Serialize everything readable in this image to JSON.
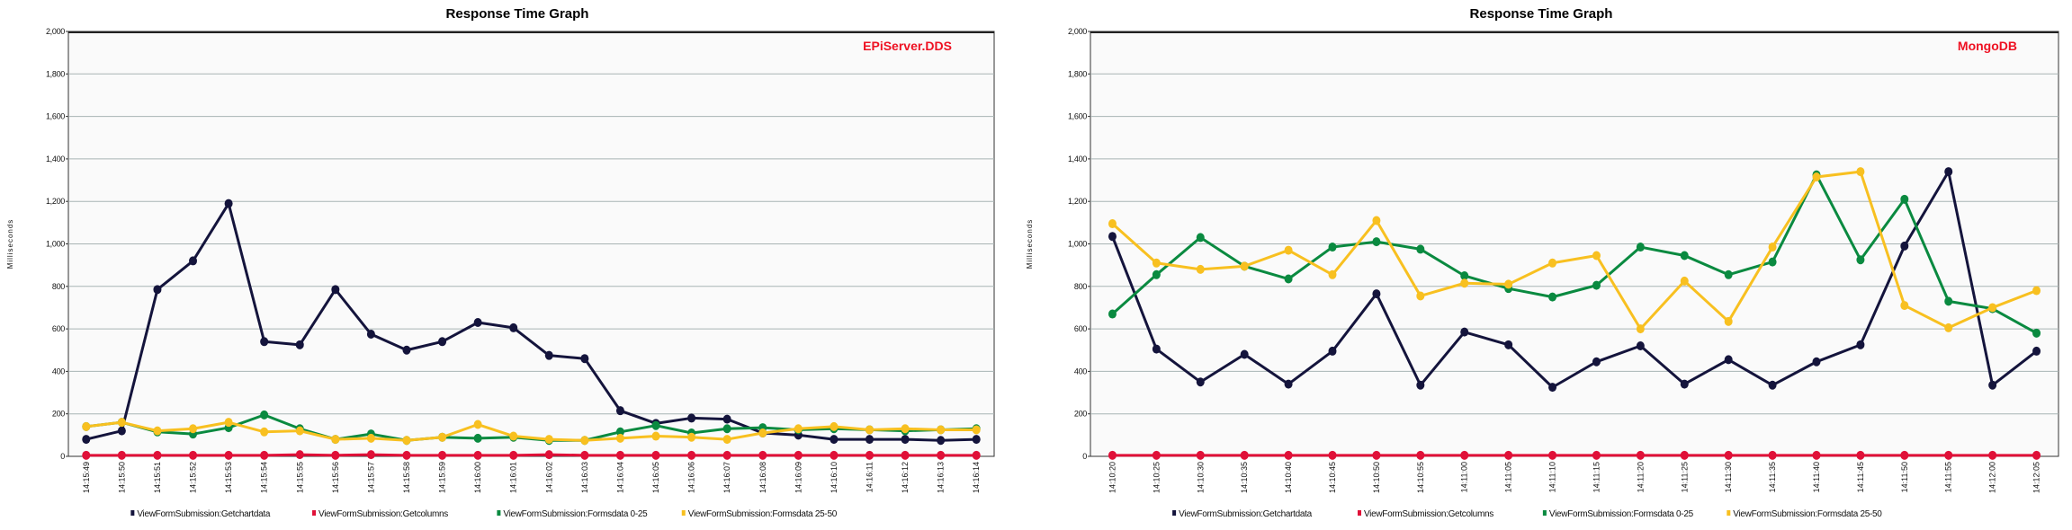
{
  "colors": {
    "Getchartdata": "#14143c",
    "Getcolumns": "#e01038",
    "Formsdata 0-25": "#0a8a40",
    "Formsdata 25-50": "#f8c020",
    "annotation": "#ee1122",
    "grid": "#a8b4b4"
  },
  "chart_data": [
    {
      "type": "line",
      "title": "Response Time Graph",
      "annotation": "EPiServer.DDS",
      "ylabel": "Milliseconds",
      "ylim": [
        0,
        2000
      ],
      "yticks": [
        "0",
        "200",
        "400",
        "600",
        "800",
        "1,000",
        "1,200",
        "1,400",
        "1,600",
        "1,800",
        "2,000"
      ],
      "grid": true,
      "legend": "bottom",
      "categories": [
        "14:15:49",
        "14:15:50",
        "14:15:51",
        "14:15:52",
        "14:15:53",
        "14:15:54",
        "14:15:55",
        "14:15:56",
        "14:15:57",
        "14:15:58",
        "14:15:59",
        "14:16:00",
        "14:16:01",
        "14:16:02",
        "14:16:03",
        "14:16:04",
        "14:16:05",
        "14:16:06",
        "14:16:07",
        "14:16:08",
        "14:16:09",
        "14:16:10",
        "14:16:11",
        "14:16:12",
        "14:16:13",
        "14:16:14"
      ],
      "series": [
        {
          "name": "ViewFormSubmission:Getchartdata",
          "key": "Getchartdata",
          "values": [
            80,
            120,
            785,
            920,
            1190,
            540,
            525,
            785,
            575,
            500,
            540,
            630,
            605,
            475,
            460,
            215,
            155,
            180,
            175,
            110,
            100,
            80,
            80,
            80,
            75,
            80
          ]
        },
        {
          "name": "ViewFormSubmission:Getcolumns",
          "key": "Getcolumns",
          "values": [
            5,
            5,
            5,
            5,
            5,
            5,
            8,
            5,
            8,
            5,
            5,
            5,
            5,
            8,
            5,
            5,
            5,
            5,
            5,
            5,
            5,
            5,
            5,
            5,
            5,
            5
          ]
        },
        {
          "name": "ViewFormSubmission:Formsdata 0-25",
          "key": "Formsdata 0-25",
          "values": [
            140,
            160,
            115,
            105,
            135,
            195,
            130,
            80,
            105,
            75,
            90,
            85,
            90,
            75,
            75,
            115,
            145,
            110,
            130,
            135,
            125,
            130,
            125,
            120,
            125,
            130
          ]
        },
        {
          "name": "ViewFormSubmission:Formsdata 25-50",
          "key": "Formsdata 25-50",
          "values": [
            140,
            160,
            120,
            130,
            160,
            115,
            120,
            80,
            85,
            75,
            90,
            150,
            95,
            80,
            75,
            85,
            95,
            90,
            80,
            110,
            130,
            140,
            125,
            130,
            125,
            125
          ]
        }
      ]
    },
    {
      "type": "line",
      "title": "Response Time Graph",
      "annotation": "MongoDB",
      "ylabel": "Milliseconds",
      "ylim": [
        0,
        2000
      ],
      "yticks": [
        "0",
        "200",
        "400",
        "600",
        "800",
        "1,000",
        "1,200",
        "1,400",
        "1,600",
        "1,800",
        "2,000"
      ],
      "grid": true,
      "legend": "bottom",
      "categories": [
        "14:10:20",
        "14:10:25",
        "14:10:30",
        "14:10:35",
        "14:10:40",
        "14:10:45",
        "14:10:50",
        "14:10:55",
        "14:11:00",
        "14:11:05",
        "14:11:10",
        "14:11:15",
        "14:11:20",
        "14:11:25",
        "14:11:30",
        "14:11:35",
        "14:11:40",
        "14:11:45",
        "14:11:50",
        "14:11:55",
        "14:12:00",
        "14:12:05"
      ],
      "series": [
        {
          "name": "ViewFormSubmission:Getchartdata",
          "key": "Getchartdata",
          "values": [
            1035,
            505,
            350,
            480,
            340,
            495,
            765,
            335,
            585,
            525,
            325,
            445,
            520,
            340,
            455,
            335,
            445,
            525,
            990,
            1340,
            335,
            495
          ]
        },
        {
          "name": "ViewFormSubmission:Getcolumns",
          "key": "Getcolumns",
          "values": [
            5,
            5,
            5,
            5,
            5,
            5,
            5,
            5,
            5,
            5,
            5,
            5,
            5,
            5,
            5,
            5,
            5,
            5,
            5,
            5,
            5,
            5
          ]
        },
        {
          "name": "ViewFormSubmission:Formsdata 0-25",
          "key": "Formsdata 0-25",
          "values": [
            670,
            855,
            1030,
            895,
            835,
            985,
            1010,
            975,
            850,
            790,
            750,
            805,
            985,
            945,
            855,
            915,
            1325,
            925,
            1210,
            730,
            695,
            580
          ]
        },
        {
          "name": "ViewFormSubmission:Formsdata 25-50",
          "key": "Formsdata 25-50",
          "values": [
            1095,
            910,
            880,
            895,
            970,
            855,
            1110,
            755,
            815,
            810,
            910,
            945,
            600,
            825,
            635,
            985,
            1315,
            1340,
            710,
            605,
            700,
            780
          ]
        }
      ]
    }
  ]
}
